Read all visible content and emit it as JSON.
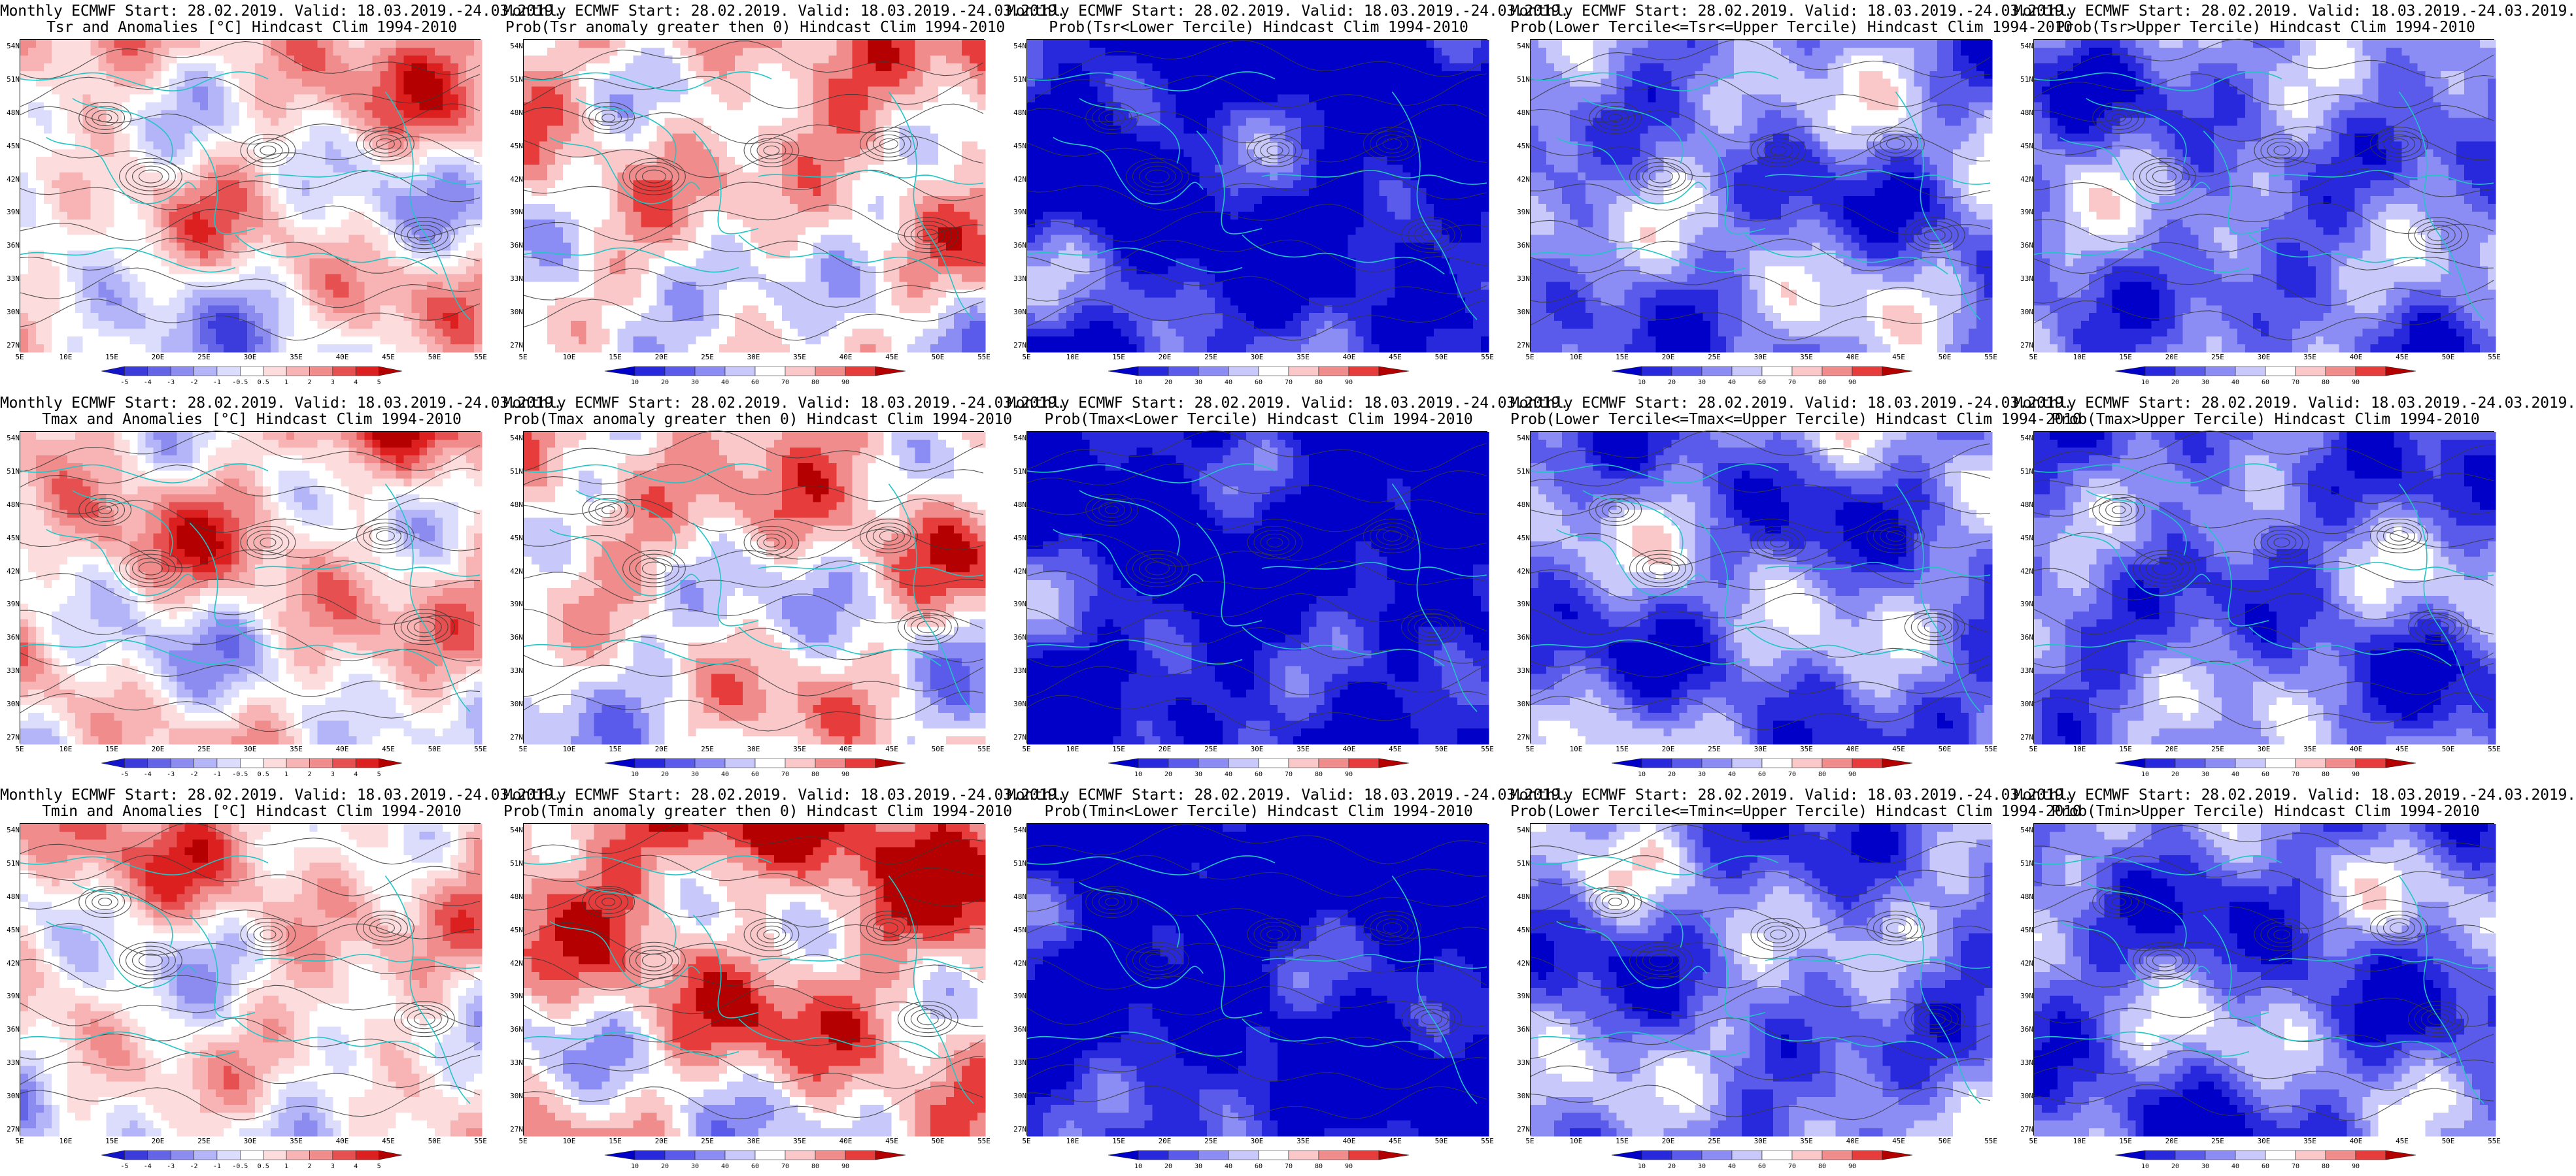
{
  "panels": [
    {
      "t1": "Monthly ECMWF Start: 28.02.2019. Valid: 18.03.2019.-24.03.2019.",
      "t2": "Tsr and Anomalies [°C] Hindcast Clim 1994-2010",
      "kind": "anom",
      "bias": 0.55,
      "seed": 1
    },
    {
      "t1": "Monthly ECMWF Start: 28.02.2019. Valid: 18.03.2019.-24.03.2019.",
      "t2": "Prob(Tsr anomaly greater then 0) Hindcast Clim 1994-2010",
      "kind": "prob",
      "bias": 0.62,
      "seed": 2
    },
    {
      "t1": "Monthly ECMWF Start: 28.02.2019. Valid: 18.03.2019.-24.03.2019.",
      "t2": "Prob(Tsr<Lower Tercile) Hindcast Clim 1994-2010",
      "kind": "prob",
      "bias": 0.06,
      "seed": 3
    },
    {
      "t1": "Monthly ECMWF Start: 28.02.2019. Valid: 18.03.2019.-24.03.2019.",
      "t2": "Prob(Lower Tercile<=Tsr<=Upper Tercile) Hindcast Clim 1994-2010",
      "kind": "prob",
      "bias": 0.32,
      "seed": 4
    },
    {
      "t1": "Monthly ECMWF Start: 28.02.2019. Valid: 18.03.2019.-24.03.2019.",
      "t2": "Prob(Tsr>Upper Tercile) Hindcast Clim 1994-2010",
      "kind": "prob",
      "bias": 0.3,
      "seed": 5
    },
    {
      "t1": "Monthly ECMWF Start: 28.02.2019. Valid: 18.03.2019.-24.03.2019.",
      "t2": "Tmax and Anomalies [°C] Hindcast Clim 1994-2010",
      "kind": "anom",
      "bias": 0.58,
      "seed": 6
    },
    {
      "t1": "Monthly ECMWF Start: 28.02.2019. Valid: 18.03.2019.-24.03.2019.",
      "t2": "Prob(Tmax anomaly greater then 0) Hindcast Clim 1994-2010",
      "kind": "prob",
      "bias": 0.6,
      "seed": 7
    },
    {
      "t1": "Monthly ECMWF Start: 28.02.2019. Valid: 18.03.2019.-24.03.2019.",
      "t2": "Prob(Tmax<Lower Tercile) Hindcast Clim 1994-2010",
      "kind": "prob",
      "bias": 0.07,
      "seed": 8
    },
    {
      "t1": "Monthly ECMWF Start: 28.02.2019. Valid: 18.03.2019.-24.03.2019.",
      "t2": "Prob(Lower Tercile<=Tmax<=Upper Tercile) Hindcast Clim 1994-2010",
      "kind": "prob",
      "bias": 0.3,
      "seed": 9
    },
    {
      "t1": "Monthly ECMWF Start: 28.02.2019. Valid: 18.03.2019.-24.03.2019.",
      "t2": "Prob(Tmax>Upper Tercile) Hindcast Clim 1994-2010",
      "kind": "prob",
      "bias": 0.28,
      "seed": 10
    },
    {
      "t1": "Monthly ECMWF Start: 28.02.2019. Valid: 18.03.2019.-24.03.2019.",
      "t2": "Tmin and Anomalies [°C] Hindcast Clim 1994-2010",
      "kind": "anom",
      "bias": 0.56,
      "seed": 11
    },
    {
      "t1": "Monthly ECMWF Start: 28.02.2019. Valid: 18.03.2019.-24.03.2019.",
      "t2": "Prob(Tmin anomaly greater then 0) Hindcast Clim 1994-2010",
      "kind": "prob",
      "bias": 0.7,
      "seed": 12
    },
    {
      "t1": "Monthly ECMWF Start: 28.02.2019. Valid: 18.03.2019.-24.03.2019.",
      "t2": "Prob(Tmin<Lower Tercile) Hindcast Clim 1994-2010",
      "kind": "prob",
      "bias": 0.04,
      "seed": 13
    },
    {
      "t1": "Monthly ECMWF Start: 28.02.2019. Valid: 18.03.2019.-24.03.2019.",
      "t2": "Prob(Lower Tercile<=Tmin<=Upper Tercile) Hindcast Clim 1994-2010",
      "kind": "prob",
      "bias": 0.3,
      "seed": 14
    },
    {
      "t1": "Monthly ECMWF Start: 28.02.2019. Valid: 18.03.2019.-24.03.2019.",
      "t2": "Prob(Tmin>Upper Tercile) Hindcast Clim 1994-2010",
      "kind": "prob",
      "bias": 0.27,
      "seed": 15
    }
  ],
  "lat_labels": [
    "54N",
    "51N",
    "48N",
    "45N",
    "42N",
    "39N",
    "36N",
    "33N",
    "30N",
    "27N"
  ],
  "lon_labels": [
    "5E",
    "10E",
    "15E",
    "20E",
    "25E",
    "30E",
    "35E",
    "40E",
    "45E",
    "50E",
    "55E"
  ],
  "colorbars": {
    "anom": {
      "ticks": [
        "-5",
        "-4",
        "-3",
        "-2",
        "-1",
        "-0.5",
        "0.5",
        "1",
        "2",
        "3",
        "4",
        "5"
      ],
      "colors": [
        "#1414c8",
        "#3c3cdc",
        "#6464e6",
        "#8c8cf0",
        "#b4b4f8",
        "#dcdcfc",
        "#ffffff",
        "#fcdcdc",
        "#f8b4b4",
        "#f08c8c",
        "#e65050",
        "#dc2020",
        "#b40000"
      ]
    },
    "prob": {
      "ticks": [
        "10",
        "20",
        "30",
        "40",
        "60",
        "70",
        "80",
        "90"
      ],
      "colors": [
        "#0000c8",
        "#2828dc",
        "#5a5aeb",
        "#8c8cf5",
        "#c8c8fa",
        "#ffffff",
        "#fac8c8",
        "#f08c8c",
        "#e63c3c",
        "#b40000"
      ]
    }
  },
  "colors": {
    "coast": "#22c5c5",
    "contour": "#3a3a3a"
  }
}
